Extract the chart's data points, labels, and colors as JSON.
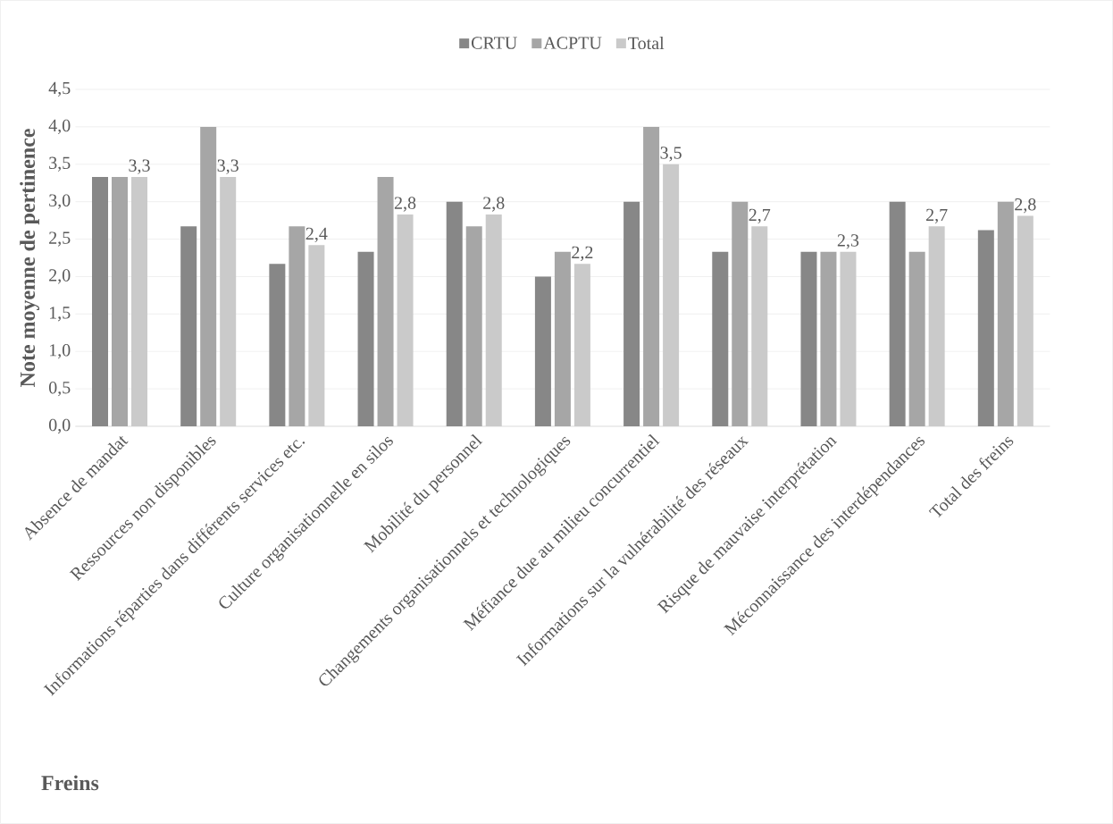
{
  "chart_data": {
    "type": "bar",
    "xlabel": "Freins",
    "ylabel": "Note moyenne de pertinence",
    "categories": [
      "Absence de mandat",
      "Ressources non disponibles",
      "Informations réparties dans différents services etc.",
      "Culture organisationnelle en silos",
      "Mobilité du personnel",
      "Changements organisationnels et technologiques",
      "Méfiance due au milieu concurrentiel",
      "Informations sur la vulnérabilité des réseaux",
      "Risque de mauvaise interprétation",
      "Méconnaissance des interdépendances",
      "Total des freins"
    ],
    "series": [
      {
        "name": "CRTU",
        "color": "#878787",
        "values": [
          3.33,
          2.67,
          2.17,
          2.33,
          3.0,
          2.0,
          3.0,
          2.33,
          2.33,
          3.0,
          2.62
        ]
      },
      {
        "name": "ACPTU",
        "color": "#a6a6a6",
        "values": [
          3.33,
          4.0,
          2.67,
          3.33,
          2.67,
          2.33,
          4.0,
          3.0,
          2.33,
          2.33,
          3.0
        ]
      },
      {
        "name": "Total",
        "color": "#cacaca",
        "values": [
          3.33,
          3.33,
          2.42,
          2.83,
          2.83,
          2.17,
          3.5,
          2.67,
          2.33,
          2.67,
          2.81
        ],
        "value_labels": [
          "3,3",
          "3,3",
          "2,4",
          "2,8",
          "2,8",
          "2,2",
          "3,5",
          "2,7",
          "2,3",
          "2,7",
          "2,8"
        ]
      }
    ],
    "ylim": [
      0,
      4.5
    ],
    "yticks": [
      {
        "value": 0,
        "label": "0,0"
      },
      {
        "value": 0.5,
        "label": "0,5"
      },
      {
        "value": 1,
        "label": "1,0"
      },
      {
        "value": 1.5,
        "label": "1,5"
      },
      {
        "value": 2,
        "label": "2,0"
      },
      {
        "value": 2.5,
        "label": "2,5"
      },
      {
        "value": 3,
        "label": "3,0"
      },
      {
        "value": 3.5,
        "label": "3,5"
      },
      {
        "value": 4,
        "label": "4,0"
      },
      {
        "value": 4.5,
        "label": "4,5"
      }
    ],
    "grid": "y",
    "legend": "top"
  }
}
